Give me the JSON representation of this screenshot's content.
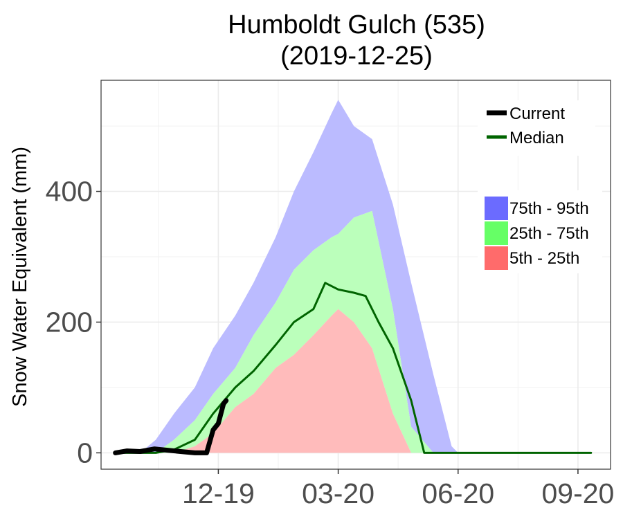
{
  "chart_data": {
    "type": "area",
    "title": "Humboldt Gulch (535)",
    "subtitle": "(2019-12-25)",
    "xlabel": "",
    "ylabel": "Snow Water Equivalent (mm)",
    "x_start": "2019-10-01",
    "x_end": "2020-09-30",
    "xlim": [
      "2019-09-20",
      "2020-10-15"
    ],
    "ylim": [
      -25,
      570
    ],
    "x_ticks": [
      {
        "date": "2019-12-19",
        "label": "12-19"
      },
      {
        "date": "2020-03-20",
        "label": "03-20"
      },
      {
        "date": "2020-06-20",
        "label": "06-20"
      },
      {
        "date": "2020-09-20",
        "label": "09-20"
      }
    ],
    "y_ticks": [
      0,
      200,
      400
    ],
    "grid": true,
    "legend_position": "top-right",
    "legend": {
      "lines": [
        {
          "label": "Current",
          "color": "#000000"
        },
        {
          "label": "Median",
          "color": "#006400"
        }
      ],
      "bands": [
        {
          "label": "75th - 95th",
          "color": "#6b6bff"
        },
        {
          "label": "25th - 75th",
          "color": "#66ff66"
        },
        {
          "label": "5th - 25th",
          "color": "#ff6b6b"
        }
      ]
    },
    "band_colors": {
      "p75_p95": "#bbbbff",
      "p25_p75": "#bbffbb",
      "p5_p25": "#ffbbbb"
    },
    "percentile_bands": {
      "x": [
        "2019-10-01",
        "2019-10-20",
        "2019-11-01",
        "2019-11-15",
        "2019-12-01",
        "2019-12-15",
        "2020-01-01",
        "2020-01-15",
        "2020-02-01",
        "2020-02-15",
        "2020-03-01",
        "2020-03-15",
        "2020-03-20",
        "2020-04-01",
        "2020-04-15",
        "2020-05-01",
        "2020-05-15",
        "2020-06-01",
        "2020-06-15",
        "2020-06-20",
        "2020-07-01",
        "2020-09-30"
      ],
      "p5": [
        0,
        0,
        0,
        0,
        0,
        0,
        0,
        0,
        0,
        0,
        0,
        0,
        0,
        0,
        0,
        0,
        0,
        0,
        0,
        0,
        0,
        0
      ],
      "p25": [
        0,
        0,
        0,
        0,
        10,
        30,
        70,
        90,
        130,
        150,
        180,
        210,
        220,
        200,
        160,
        60,
        0,
        0,
        0,
        0,
        0,
        0
      ],
      "p75": [
        0,
        0,
        0,
        20,
        50,
        90,
        130,
        180,
        230,
        280,
        310,
        330,
        335,
        360,
        370,
        220,
        40,
        0,
        0,
        0,
        0,
        0
      ],
      "p95": [
        0,
        0,
        20,
        60,
        100,
        160,
        210,
        260,
        330,
        400,
        460,
        520,
        540,
        500,
        480,
        380,
        260,
        120,
        10,
        0,
        0,
        0
      ]
    },
    "series": [
      {
        "name": "Median",
        "color": "#006400",
        "x": [
          "2019-10-01",
          "2019-11-01",
          "2019-11-15",
          "2019-12-01",
          "2019-12-15",
          "2020-01-01",
          "2020-01-15",
          "2020-02-01",
          "2020-02-15",
          "2020-03-01",
          "2020-03-10",
          "2020-03-20",
          "2020-04-01",
          "2020-04-10",
          "2020-04-20",
          "2020-05-01",
          "2020-05-15",
          "2020-05-25",
          "2020-06-01",
          "2020-07-01",
          "2020-08-01",
          "2020-09-30"
        ],
        "y": [
          0,
          0,
          5,
          20,
          60,
          100,
          125,
          165,
          200,
          220,
          260,
          250,
          245,
          240,
          200,
          160,
          80,
          0,
          0,
          0,
          0,
          0
        ]
      },
      {
        "name": "Current",
        "color": "#000000",
        "x": [
          "2019-10-01",
          "2019-10-10",
          "2019-10-20",
          "2019-10-31",
          "2019-11-10",
          "2019-11-20",
          "2019-12-01",
          "2019-12-10",
          "2019-12-15",
          "2019-12-19",
          "2019-12-23",
          "2019-12-25"
        ],
        "y": [
          0,
          3,
          2,
          6,
          4,
          2,
          0,
          0,
          35,
          45,
          75,
          80
        ]
      }
    ]
  }
}
